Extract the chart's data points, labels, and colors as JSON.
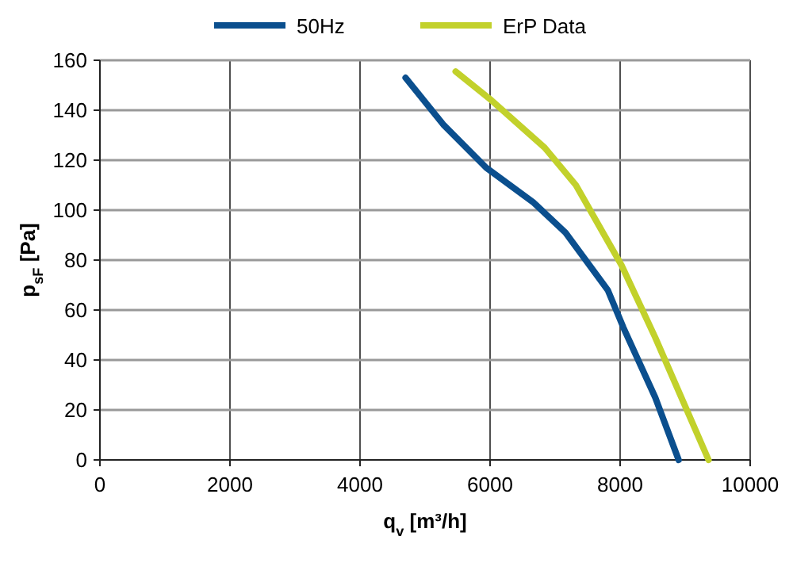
{
  "chart_data": {
    "type": "line",
    "xlabel": "q$_{v}$ [m³/h]",
    "ylabel": "p$_{sF}$ [Pa]",
    "xlim": [
      0,
      10000
    ],
    "xticks": [
      0,
      2000,
      4000,
      6000,
      8000,
      10000
    ],
    "ylim": [
      0,
      160
    ],
    "yticks": [
      0,
      20,
      40,
      60,
      80,
      100,
      120,
      140,
      160
    ],
    "grid": true,
    "legend": "top",
    "series": [
      {
        "name": "50Hz",
        "color": "#0b4f8e",
        "x": [
          4700,
          5290,
          5940,
          6670,
          7160,
          7810,
          8050,
          8540,
          8900
        ],
        "values": [
          153,
          134,
          117,
          103,
          91,
          68,
          53,
          25,
          0
        ]
      },
      {
        "name": "ErP Data",
        "color": "#c2d12b",
        "x": [
          5470,
          6020,
          6840,
          7320,
          8020,
          8540,
          9360
        ],
        "values": [
          155.5,
          144,
          125,
          110,
          78,
          49,
          0
        ]
      }
    ]
  }
}
